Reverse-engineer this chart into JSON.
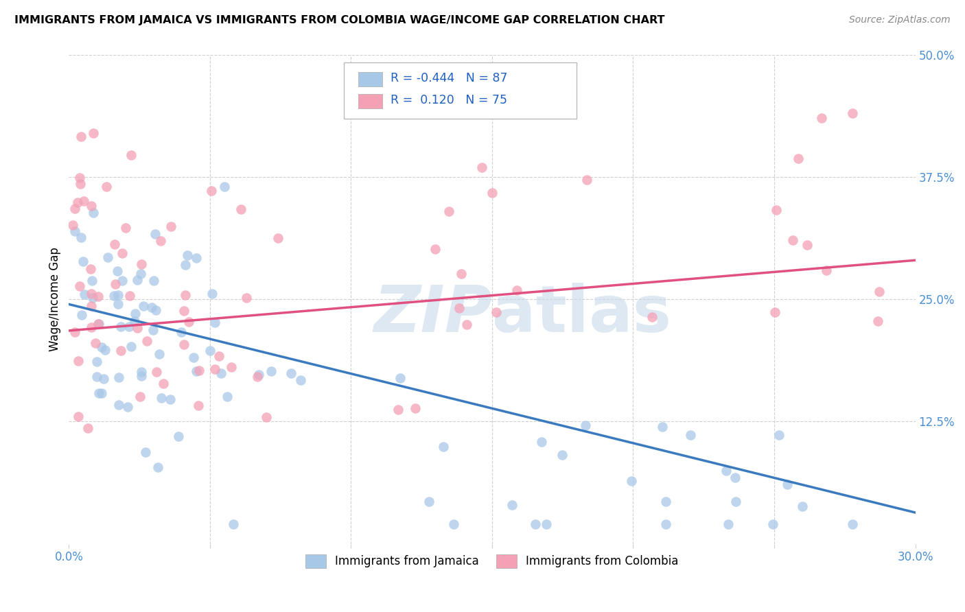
{
  "title": "IMMIGRANTS FROM JAMAICA VS IMMIGRANTS FROM COLOMBIA WAGE/INCOME GAP CORRELATION CHART",
  "source": "Source: ZipAtlas.com",
  "ylabel": "Wage/Income Gap",
  "xlim": [
    0.0,
    0.3
  ],
  "ylim": [
    0.0,
    0.5
  ],
  "jamaica_color": "#a8c8e8",
  "colombia_color": "#f4a0b5",
  "jamaica_R": "-0.444",
  "jamaica_N": "87",
  "colombia_R": "0.120",
  "colombia_N": "75",
  "jamaica_line_color": "#3a7abf",
  "colombia_line_color": "#e05080",
  "watermark_color": "#c8daea",
  "background_color": "#ffffff",
  "grid_color": "#d0d0d0",
  "tick_label_color": "#4a8fd4",
  "legend_text_color": "#2060c0"
}
